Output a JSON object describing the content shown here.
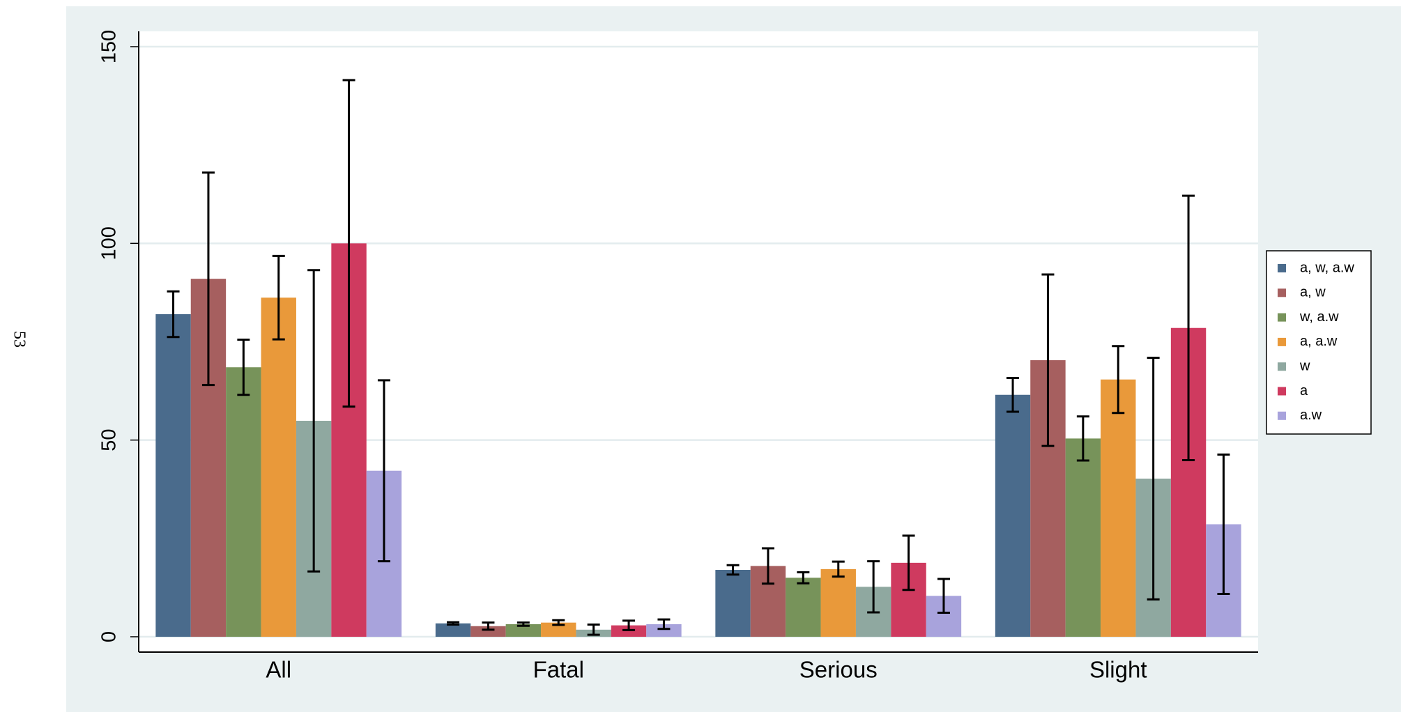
{
  "margin_text": "53",
  "chart_data": {
    "type": "bar",
    "categories": [
      "All",
      "Fatal",
      "Serious",
      "Slight"
    ],
    "series": [
      {
        "name": "a, w, a.w",
        "color": "#4a6b8c",
        "values": [
          82,
          3.4,
          17,
          61.5
        ],
        "errors": [
          5.8,
          0.3,
          1.2,
          4.3
        ]
      },
      {
        "name": "a, w",
        "color": "#a65f5f",
        "values": [
          91,
          2.7,
          18,
          70.3
        ],
        "errors": [
          27,
          0.9,
          4.5,
          21.8
        ]
      },
      {
        "name": "w, a.w",
        "color": "#77935a",
        "values": [
          68.5,
          3.2,
          15,
          50.4
        ],
        "errors": [
          7,
          0.4,
          1.4,
          5.6
        ]
      },
      {
        "name": "a, a.w",
        "color": "#e9993a",
        "values": [
          86.2,
          3.6,
          17.2,
          65.4
        ],
        "errors": [
          10.6,
          0.6,
          1.9,
          8.5
        ]
      },
      {
        "name": "w",
        "color": "#8fa8a0",
        "values": [
          54.9,
          1.8,
          12.7,
          40.2
        ],
        "errors": [
          38.3,
          1.3,
          6.5,
          30.7
        ]
      },
      {
        "name": "a",
        "color": "#cf3a5f",
        "values": [
          100,
          2.9,
          18.8,
          78.5
        ],
        "errors": [
          41.5,
          1.2,
          6.9,
          33.6
        ]
      },
      {
        "name": "a.w",
        "color": "#a8a3dc",
        "values": [
          42.2,
          3.2,
          10.4,
          28.6
        ],
        "errors": [
          23,
          1.2,
          4.3,
          17.7
        ]
      }
    ],
    "ylim": [
      0,
      150
    ],
    "yticks": [
      0,
      50,
      100,
      150
    ],
    "grid": true,
    "legend": "right"
  }
}
